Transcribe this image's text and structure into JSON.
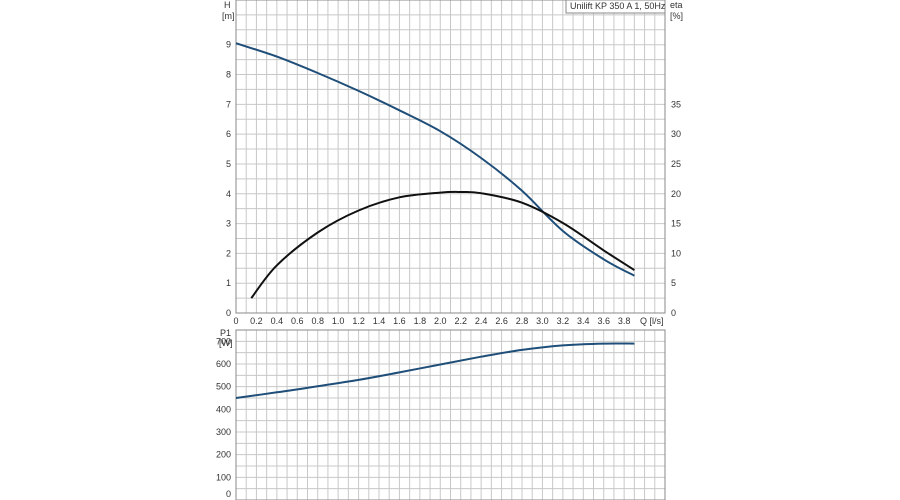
{
  "chart_data": [
    {
      "type": "line",
      "title": "Unilift KP 350 A 1, 50Hz",
      "xlabel": "Q [l/s]",
      "ylabel_left": "H",
      "ylabel_left_unit": "[m]",
      "ylabel_right": "eta",
      "ylabel_right_unit": "[%]",
      "xlim": [
        0,
        4.2
      ],
      "ylim_left": [
        0,
        10.5
      ],
      "ylim_right": [
        0,
        52.5
      ],
      "x_ticks": [
        "0",
        "0.2",
        "0.4",
        "0.6",
        "0.8",
        "1.0",
        "1.2",
        "1.4",
        "1.6",
        "1.8",
        "2.0",
        "2.2",
        "2.4",
        "2.6",
        "2.8",
        "3.0",
        "3.2",
        "3.4",
        "3.6",
        "3.8"
      ],
      "y_ticks_left": [
        "0",
        "1",
        "2",
        "3",
        "4",
        "5",
        "6",
        "7",
        "8",
        "9"
      ],
      "y_ticks_right": [
        "0",
        "5",
        "10",
        "15",
        "20",
        "25",
        "30",
        "35"
      ],
      "grid": true,
      "series": [
        {
          "axis": "left",
          "color": "#1f4e79",
          "x": [
            0,
            0.4,
            0.8,
            1.2,
            1.6,
            2.0,
            2.4,
            2.8,
            3.2,
            3.6,
            3.9
          ],
          "y": [
            9.05,
            8.6,
            8.05,
            7.45,
            6.8,
            6.1,
            5.2,
            4.1,
            2.75,
            1.8,
            1.25
          ]
        },
        {
          "axis": "right",
          "color": "#111111",
          "x": [
            0.15,
            0.4,
            0.8,
            1.2,
            1.6,
            2.0,
            2.2,
            2.4,
            2.8,
            3.2,
            3.6,
            3.9
          ],
          "y": [
            2.5,
            8.0,
            13.5,
            17.2,
            19.4,
            20.2,
            20.3,
            20.1,
            18.5,
            15.1,
            10.5,
            7.2
          ]
        }
      ]
    },
    {
      "type": "line",
      "xlim": [
        0,
        4.2
      ],
      "ylabel": "P1",
      "ylabel_unit": "[W]",
      "ylim": [
        0,
        750
      ],
      "y_ticks": [
        "0",
        "100",
        "200",
        "300",
        "400",
        "500",
        "600",
        "700"
      ],
      "grid": true,
      "series": [
        {
          "color": "#1f4e79",
          "x": [
            0,
            0.4,
            0.8,
            1.2,
            1.6,
            2.0,
            2.4,
            2.8,
            3.2,
            3.6,
            3.9
          ],
          "y": [
            450,
            475,
            502,
            530,
            563,
            598,
            632,
            662,
            682,
            690,
            690
          ]
        }
      ]
    }
  ]
}
